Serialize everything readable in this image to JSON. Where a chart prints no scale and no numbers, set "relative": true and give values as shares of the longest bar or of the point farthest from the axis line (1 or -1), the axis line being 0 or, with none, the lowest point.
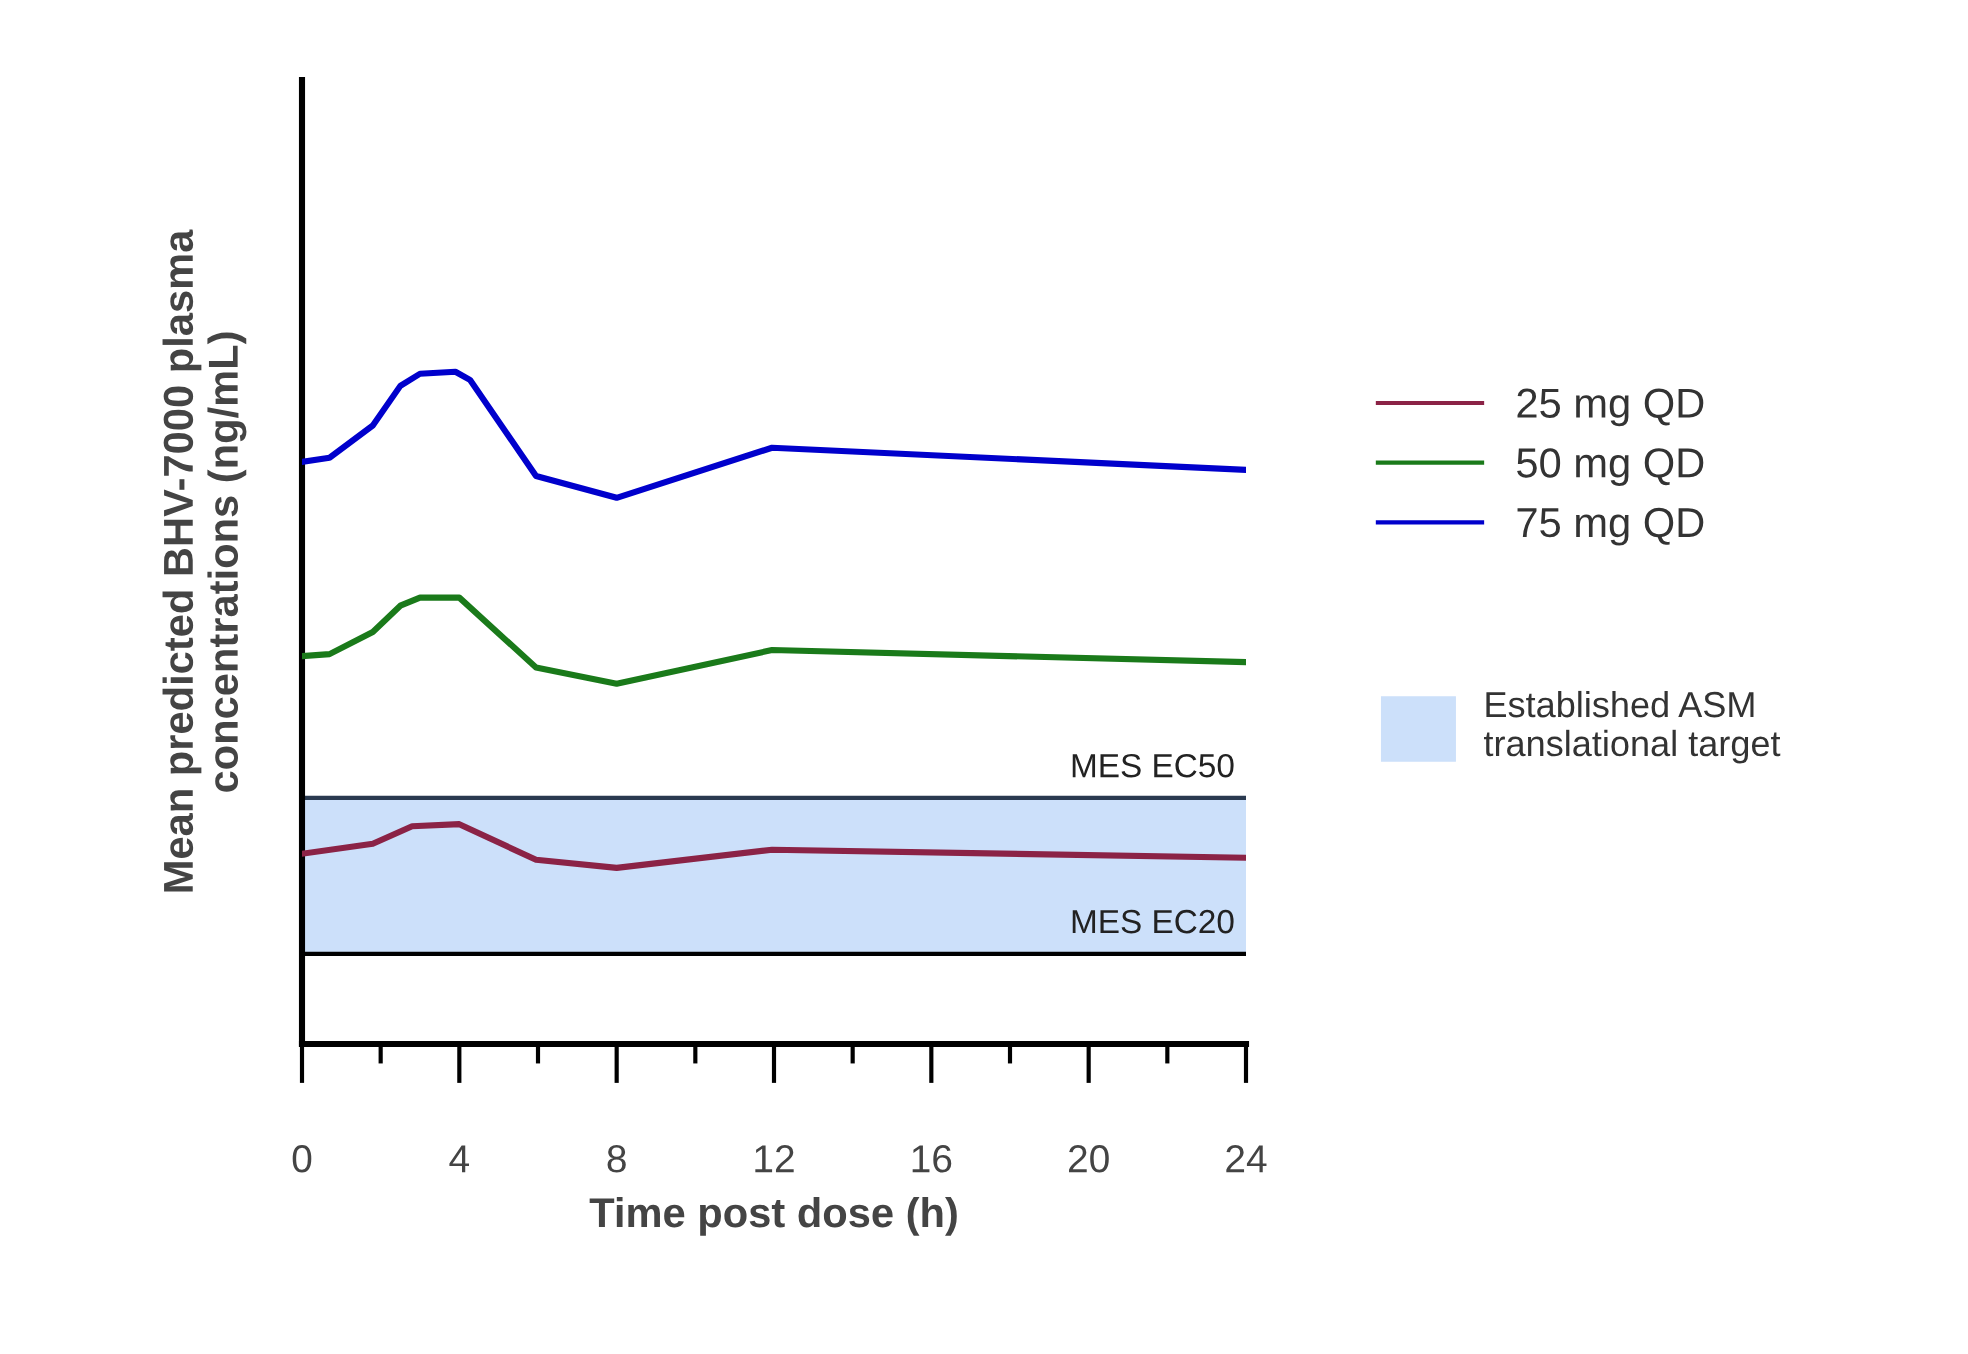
{
  "chart_data": {
    "type": "line",
    "relative": true,
    "xlabel": "Time post dose (h)",
    "ylabel": "Mean predicted BHV-7000 plasma\nconcentrations (ng/mL)",
    "xlim": [
      0,
      24
    ],
    "xticks": [
      0,
      {
        "value": 2,
        "label": null
      },
      4,
      {
        "value": 6,
        "label": null
      },
      8,
      {
        "value": 10,
        "label": null
      },
      12,
      {
        "value": 14,
        "label": null
      },
      16,
      {
        "value": 18,
        "label": null
      },
      20,
      {
        "value": 22,
        "label": null
      },
      24
    ],
    "tick_labels": "x",
    "grid": false,
    "legend": "right",
    "line_style": "solid",
    "series": [
      {
        "name": "25 mg QD",
        "color": "#8b2346",
        "x": [
          0,
          1.8,
          2.8,
          4.0,
          5.95,
          8.0,
          11.95,
          24
        ],
        "values": [
          0.283,
          0.298,
          0.324,
          0.327,
          0.274,
          0.262,
          0.289,
          0.277
        ]
      },
      {
        "name": "50 mg QD",
        "color": "#1a7a1a",
        "x": [
          0,
          0.7,
          1.8,
          2.5,
          3.0,
          4.0,
          5.95,
          8.0,
          11.95,
          24
        ],
        "values": [
          0.577,
          0.58,
          0.613,
          0.652,
          0.664,
          0.664,
          0.56,
          0.536,
          0.586,
          0.568
        ]
      },
      {
        "name": "75 mg QD",
        "color": "#0000cc",
        "x": [
          0,
          0.7,
          1.8,
          2.5,
          3.0,
          3.9,
          4.27,
          5.95,
          8.0,
          11.95,
          24
        ],
        "values": [
          0.866,
          0.872,
          0.92,
          0.979,
          0.997,
          1.0,
          0.988,
          0.845,
          0.8125,
          0.887,
          0.854
        ]
      }
    ],
    "ref_lines": [
      {
        "axis": "y",
        "value": 0.366,
        "label": "MES EC50",
        "color": "#2a3a50"
      },
      {
        "axis": "y",
        "value": 0.134,
        "label": "MES EC20",
        "color": "#000000"
      }
    ],
    "bands": [
      {
        "axis": "y",
        "from": 0.134,
        "to": 0.366,
        "label": "Established ASM\ntranslational target",
        "color": "#cce0fa"
      }
    ]
  }
}
